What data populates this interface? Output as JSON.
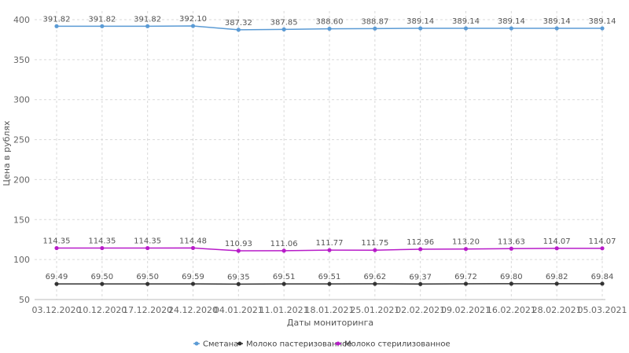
{
  "chart_data": {
    "type": "line",
    "xlabel": "Даты мониторинга",
    "ylabel": "Цена в рублях",
    "ylim": [
      50,
      400
    ],
    "yticks": [
      50,
      100,
      150,
      200,
      250,
      300,
      350,
      400
    ],
    "grid": true,
    "legend_position": "bottom",
    "categories": [
      "03.12.2020",
      "10.12.2020",
      "17.12.2020",
      "24.12.2020",
      "04.01.2021",
      "11.01.2021",
      "18.01.2021",
      "25.01.2021",
      "02.02.2021",
      "09.02.2021",
      "16.02.2021",
      "28.02.2021",
      "05.03.2021"
    ],
    "series": [
      {
        "name": "Сметана",
        "color": "#5b9bd5",
        "values": [
          391.82,
          391.82,
          391.82,
          392.1,
          387.32,
          387.85,
          388.6,
          388.87,
          389.14,
          389.14,
          389.14,
          389.14,
          389.14
        ],
        "labels": [
          "391.82",
          "391.82",
          "391.82",
          "392.10",
          "387.32",
          "387.85",
          "388.60",
          "388.87",
          "389.14",
          "389.14",
          "389.14",
          "389.14",
          "389.14"
        ]
      },
      {
        "name": "Молоко пастеризованное",
        "color": "#333333",
        "values": [
          69.49,
          69.5,
          69.5,
          69.59,
          69.35,
          69.51,
          69.51,
          69.62,
          69.37,
          69.72,
          69.8,
          69.82,
          69.84
        ],
        "labels": [
          "69.49",
          "69.50",
          "69.50",
          "69.59",
          "69.35",
          "69.51",
          "69.51",
          "69.62",
          "69.37",
          "69.72",
          "69.80",
          "69.82",
          "69.84"
        ]
      },
      {
        "name": "Молоко стерилизованное",
        "color": "#b81cc9",
        "values": [
          114.35,
          114.35,
          114.35,
          114.48,
          110.93,
          111.06,
          111.77,
          111.75,
          112.96,
          113.2,
          113.63,
          114.07,
          114.07
        ],
        "labels": [
          "114.35",
          "114.35",
          "114.35",
          "114.48",
          "110.93",
          "111.06",
          "111.77",
          "111.75",
          "112.96",
          "113.20",
          "113.63",
          "114.07",
          "114.07"
        ]
      }
    ]
  }
}
